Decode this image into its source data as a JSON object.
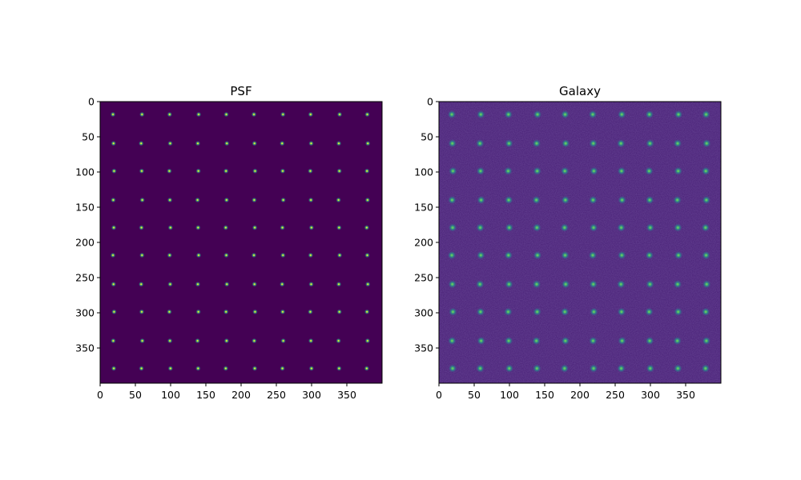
{
  "chart_data": [
    {
      "type": "heatmap",
      "title": "PSF",
      "xlabel": "",
      "ylabel": "",
      "xlim": [
        0,
        400
      ],
      "ylim": [
        400,
        0
      ],
      "x_ticks": [
        0,
        50,
        100,
        150,
        200,
        250,
        300,
        350
      ],
      "y_ticks": [
        0,
        50,
        100,
        150,
        200,
        250,
        300,
        350
      ],
      "grid": false,
      "colormap": "viridis",
      "background_color": "#440154",
      "spot_colors": [
        "#35b779",
        "#fde725"
      ],
      "spot_grid": {
        "x_centers": [
          19,
          59,
          99,
          139,
          179,
          219,
          259,
          299,
          339,
          379
        ],
        "y_centers": [
          19,
          59,
          99,
          139,
          179,
          219,
          259,
          299,
          339,
          379
        ]
      },
      "noise": false
    },
    {
      "type": "heatmap",
      "title": "Galaxy",
      "xlabel": "",
      "ylabel": "",
      "xlim": [
        0,
        400
      ],
      "ylim": [
        400,
        0
      ],
      "x_ticks": [
        0,
        50,
        100,
        150,
        200,
        250,
        300,
        350
      ],
      "y_ticks": [
        0,
        50,
        100,
        150,
        200,
        250,
        300,
        350
      ],
      "grid": false,
      "colormap": "viridis",
      "background_color": "#471e75",
      "spot_colors": [
        "#2a8c8c",
        "#5ec962"
      ],
      "spot_grid": {
        "x_centers": [
          19,
          59,
          99,
          139,
          179,
          219,
          259,
          299,
          339,
          379
        ],
        "y_centers": [
          19,
          59,
          99,
          139,
          179,
          219,
          259,
          299,
          339,
          379
        ]
      },
      "noise": true
    }
  ]
}
